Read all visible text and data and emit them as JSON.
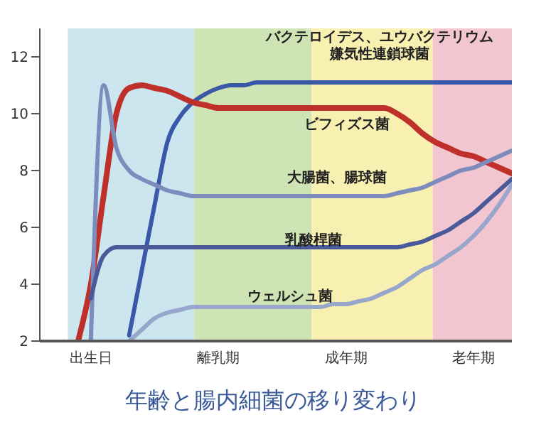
{
  "chart_data": {
    "type": "line",
    "title": "年齢と腸内細菌の移り変わり",
    "categories": [
      null,
      null,
      null,
      null,
      "出生日",
      null,
      null,
      null,
      null,
      null,
      null,
      null,
      null,
      null,
      "離乳期",
      null,
      null,
      null,
      null,
      null,
      null,
      null,
      null,
      null,
      "成年期",
      null,
      null,
      null,
      null,
      null,
      null,
      null,
      null,
      null,
      "老年期",
      null,
      null,
      null
    ],
    "ylim": [
      2,
      13
    ],
    "yticks": [
      2,
      4,
      6,
      8,
      10,
      12
    ],
    "series": [
      {
        "name": "バクテロイデス、ユウバクテリウム嫌気性連鎖球菌",
        "color": "#3a58a8",
        "values": [
          null,
          null,
          null,
          null,
          null,
          null,
          null,
          2.2,
          4.5,
          6.8,
          9.0,
          9.9,
          10.4,
          10.7,
          10.9,
          11.0,
          11.0,
          11.1,
          11.1,
          11.1,
          11.1,
          11.1,
          11.1,
          11.1,
          11.1,
          11.1,
          11.1,
          11.1,
          11.1,
          11.1,
          11.1,
          11.1,
          11.1,
          11.1,
          11.1,
          11.1,
          11.1,
          11.1
        ]
      },
      {
        "name": "ビフィズス菌",
        "color": "#c0302a",
        "values": [
          null,
          null,
          null,
          2.0,
          4.0,
          7.1,
          10.0,
          10.9,
          11.0,
          10.9,
          10.8,
          10.6,
          10.4,
          10.3,
          10.2,
          10.2,
          10.2,
          10.2,
          10.2,
          10.2,
          10.2,
          10.2,
          10.2,
          10.2,
          10.2,
          10.2,
          10.2,
          10.2,
          10.0,
          9.7,
          9.3,
          9.0,
          8.8,
          8.6,
          8.5,
          8.3,
          8.1,
          7.9
        ]
      },
      {
        "name": "大腸菌、腸球菌",
        "color": "#7d8cbc",
        "values": [
          null,
          null,
          null,
          null,
          2.0,
          11.0,
          8.8,
          8.0,
          7.7,
          7.5,
          7.3,
          7.2,
          7.1,
          7.1,
          7.1,
          7.1,
          7.1,
          7.1,
          7.1,
          7.1,
          7.1,
          7.1,
          7.1,
          7.1,
          7.1,
          7.1,
          7.1,
          7.1,
          7.2,
          7.3,
          7.4,
          7.6,
          7.8,
          8.0,
          8.1,
          8.3,
          8.5,
          8.7
        ]
      },
      {
        "name": "乳酸桿菌",
        "color": "#4a5a98",
        "values": [
          null,
          null,
          null,
          null,
          3.5,
          5.0,
          5.3,
          5.3,
          5.3,
          5.3,
          5.3,
          5.3,
          5.3,
          5.3,
          5.3,
          5.3,
          5.3,
          5.3,
          5.3,
          5.3,
          5.3,
          5.3,
          5.3,
          5.3,
          5.3,
          5.3,
          5.3,
          5.3,
          5.3,
          5.4,
          5.5,
          5.7,
          5.9,
          6.2,
          6.5,
          6.9,
          7.3,
          7.7
        ]
      },
      {
        "name": "ウェルシュ菌",
        "color": "#98a6cc",
        "values": [
          null,
          null,
          null,
          null,
          null,
          null,
          null,
          2.0,
          2.4,
          2.8,
          3.0,
          3.1,
          3.2,
          3.2,
          3.2,
          3.2,
          3.2,
          3.2,
          3.2,
          3.2,
          3.2,
          3.2,
          3.2,
          3.3,
          3.3,
          3.4,
          3.5,
          3.7,
          3.9,
          4.2,
          4.5,
          4.7,
          5.0,
          5.3,
          5.7,
          6.2,
          6.8,
          7.5
        ]
      }
    ]
  }
}
